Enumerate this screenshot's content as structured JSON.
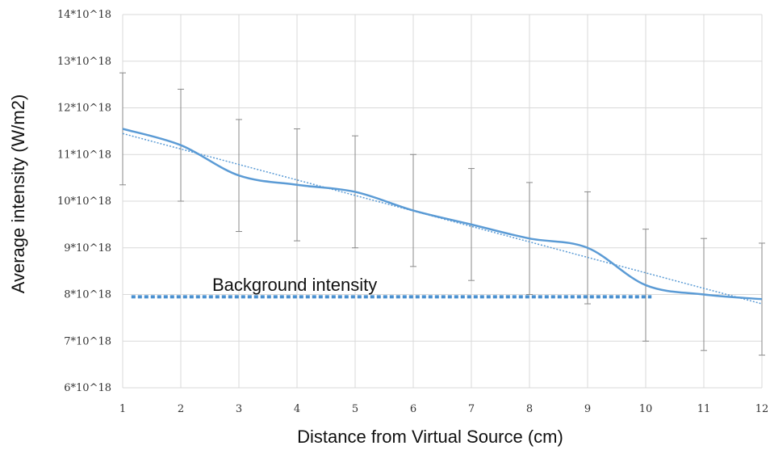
{
  "chart_data": {
    "type": "line",
    "title": "",
    "xlabel": "Distance from Virtual Source (cm)",
    "ylabel": "Average intensity (W/m2)",
    "xlim": [
      1,
      12
    ],
    "ylim": [
      6,
      14
    ],
    "grid": true,
    "x_ticks": [
      "1",
      "2",
      "3",
      "4",
      "5",
      "6",
      "7",
      "8",
      "9",
      "10",
      "11",
      "12"
    ],
    "y_ticks": [
      "6*10^18",
      "7*10^18",
      "8*10^18",
      "9*10^18",
      "10*10^18",
      "11*10^18",
      "12*10^18",
      "13*10^18",
      "14*10^18"
    ],
    "series": [
      {
        "style": "solid-smoothed",
        "color": "#5b9bd5",
        "x": [
          1,
          2,
          3,
          4,
          5,
          6,
          7,
          8,
          9,
          10,
          11,
          12
        ],
        "y": [
          11.55,
          11.2,
          10.55,
          10.35,
          10.2,
          9.8,
          9.5,
          9.2,
          9.0,
          8.2,
          8.0,
          7.9
        ],
        "error_low": [
          10.35,
          10.0,
          9.35,
          9.15,
          9.0,
          8.6,
          8.3,
          8.0,
          7.8,
          7.0,
          6.8,
          6.7
        ],
        "error_high": [
          12.75,
          12.4,
          11.75,
          11.55,
          11.4,
          11.0,
          10.7,
          10.4,
          10.2,
          9.4,
          9.2,
          9.1
        ]
      },
      {
        "style": "dotted-trendline",
        "color": "#5b9bd5",
        "x": [
          1,
          12
        ],
        "y": [
          11.45,
          7.8
        ]
      }
    ],
    "reference_line": {
      "label": "Background intensity",
      "y": 7.95,
      "x_start": 1.15,
      "x_end": 10.1,
      "color": "#4a90d0",
      "style": "dashed"
    }
  }
}
